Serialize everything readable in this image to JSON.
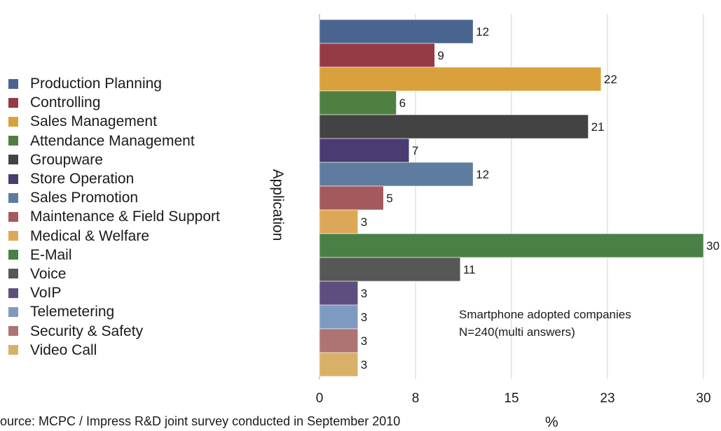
{
  "chart_data": {
    "type": "bar",
    "orientation": "horizontal",
    "categories": [
      "Production Planning",
      "Controlling",
      "Sales Management",
      "Attendance Management",
      "Groupware",
      "Store Operation",
      "Sales Promotion",
      "Maintenance & Field Support",
      "Medical & Welfare",
      "E-Mail",
      "Voice",
      "VoIP",
      "Telemetering",
      "Security & Safety",
      "Video Call"
    ],
    "values": [
      12,
      9,
      22,
      6,
      21,
      7,
      12,
      5,
      3,
      30,
      11,
      3,
      3,
      3,
      3
    ],
    "data_labels": [
      "12",
      "9",
      "22",
      "6",
      "21",
      "7",
      "12",
      "5",
      "3",
      "30",
      "11",
      "3",
      "3",
      "3",
      "3"
    ],
    "colors": [
      "#4a6490",
      "#953b45",
      "#d9a03c",
      "#4f8040",
      "#434343",
      "#4a3b72",
      "#5e7ca0",
      "#a45a5c",
      "#dca858",
      "#4a8046",
      "#575757",
      "#5e4e80",
      "#7f9ac1",
      "#ae7373",
      "#d9b068"
    ],
    "xlim": [
      0,
      30
    ],
    "xticks": [
      "0",
      "8",
      "15",
      "23",
      "30"
    ],
    "xlabel": "%",
    "ylabel": "Application",
    "grid": true,
    "legend_position": "left",
    "annotation": [
      "Smartphone adopted companies",
      "N=240(multi answers)"
    ],
    "source": "ource: MCPC / Impress R&D joint survey conducted in September 2010"
  }
}
